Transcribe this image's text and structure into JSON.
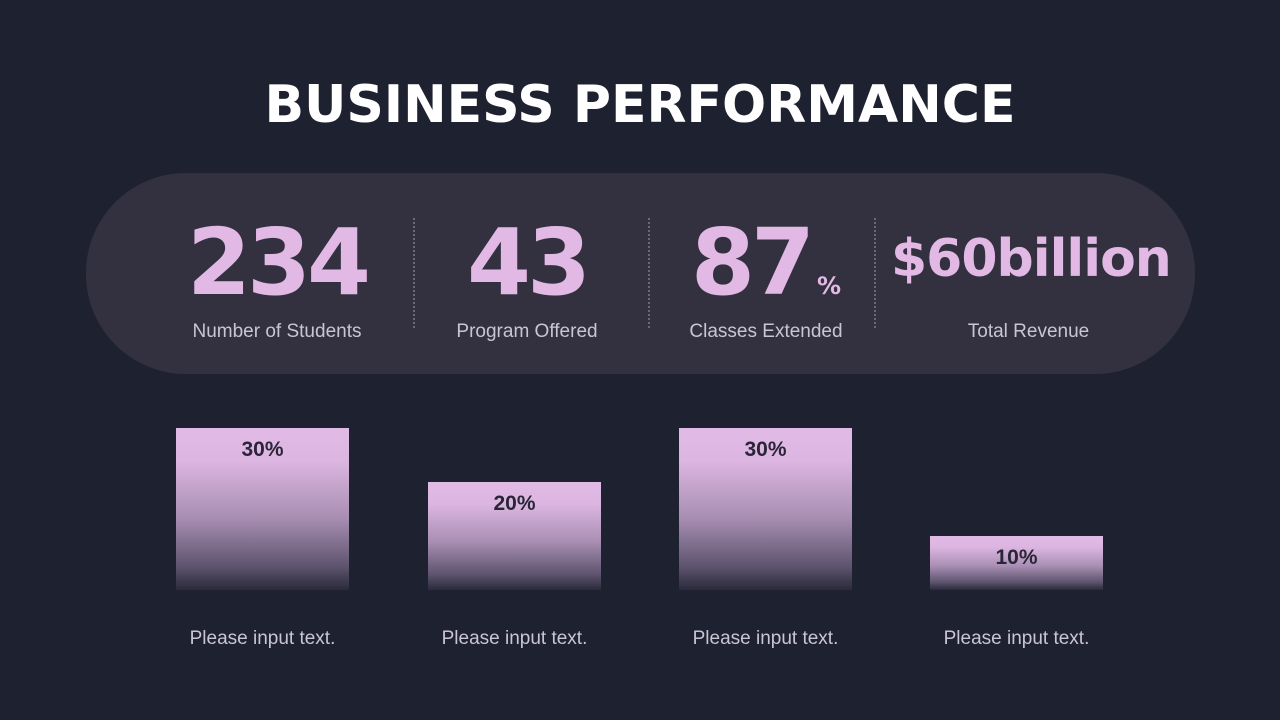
{
  "title": "BUSINESS PERFORMANCE",
  "stats": [
    {
      "value": "234",
      "unit": "",
      "label": "Number of Students"
    },
    {
      "value": "43",
      "unit": "",
      "label": "Program Offered"
    },
    {
      "value": "87",
      "unit": "%",
      "label": "Classes Extended"
    },
    {
      "value": "$60billion",
      "unit": "",
      "label": "Total Revenue"
    }
  ],
  "colors": {
    "background": "#1e2230",
    "panel": "#333140",
    "accent": "#e2b9e4",
    "title": "#ffffff",
    "label": "#c9c5d3"
  },
  "chart_data": {
    "type": "bar",
    "categories": [
      "Please input text.",
      "Please input text.",
      "Please input text.",
      "Please input text."
    ],
    "values": [
      30,
      20,
      30,
      10
    ],
    "value_labels": [
      "30%",
      "20%",
      "30%",
      "10%"
    ],
    "ylim": [
      0,
      30
    ],
    "grid": false
  }
}
